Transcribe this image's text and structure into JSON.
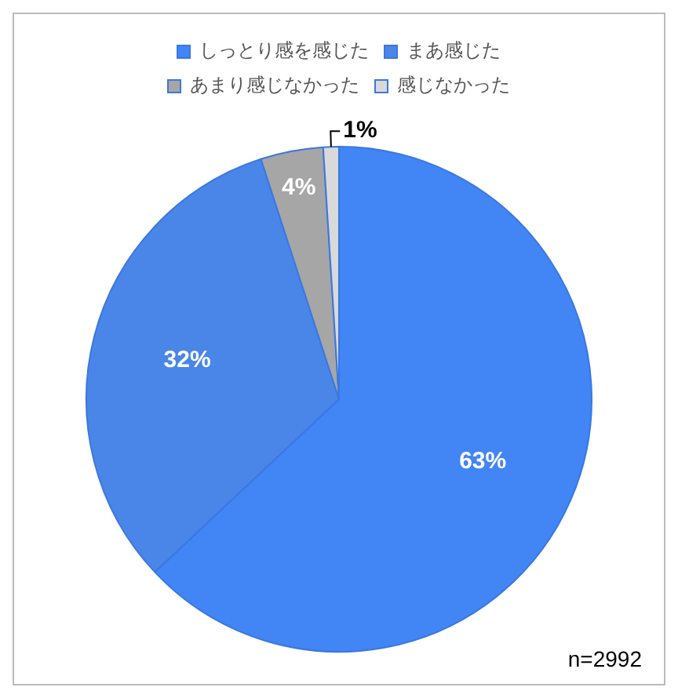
{
  "chart_data": {
    "type": "pie",
    "categories": [
      "しっとり感を感じた",
      "まあ感じた",
      "あまり感じなかった",
      "感じなかった"
    ],
    "values": [
      63,
      32,
      4,
      1
    ],
    "colors": [
      "#4285f4",
      "#4a86e8",
      "#a6a6a6",
      "#d9d9d9"
    ],
    "value_labels": [
      "63%",
      "32%",
      "4%",
      "1%"
    ],
    "legend": "top",
    "annotations": [
      "n=2992"
    ]
  }
}
